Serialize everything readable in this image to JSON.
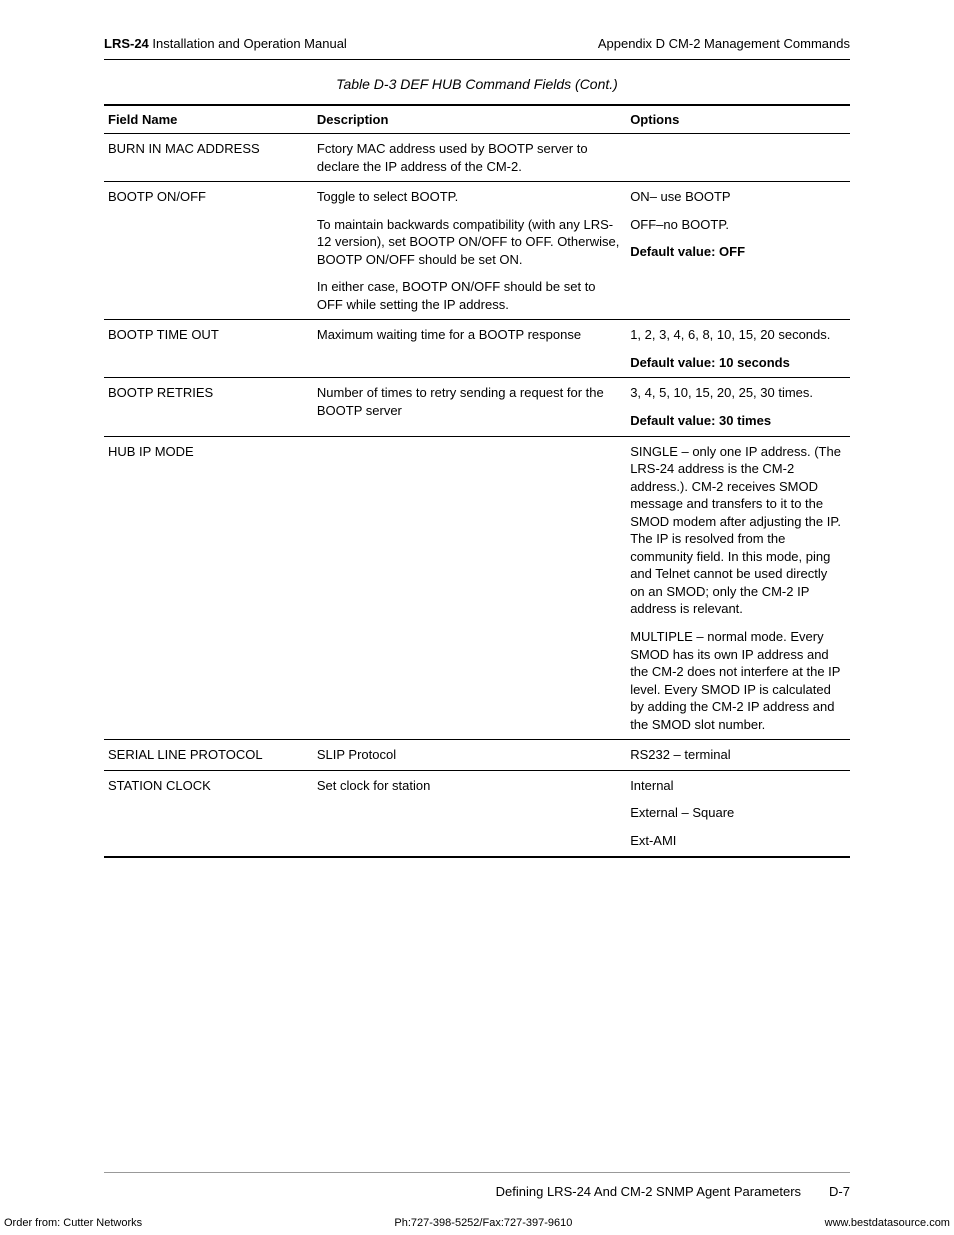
{
  "header": {
    "left_bold": "LRS-24",
    "left_rest": " Installation and Operation Manual",
    "right": "Appendix D  CM-2 Management Commands"
  },
  "caption": "Table D-3     DEF HUB Command Fields (Cont.)",
  "columns": {
    "field": "Field Name",
    "desc": "Description",
    "opt": "Options"
  },
  "rows": [
    {
      "field": "BURN IN MAC ADDRESS",
      "desc": [
        "Fctory MAC address used by BOOTP server to declare the IP address of the CM-2."
      ],
      "opt": []
    },
    {
      "field": "BOOTP ON/OFF",
      "desc": [
        "Toggle to select BOOTP.",
        "To maintain backwards compatibility (with any LRS-12 version), set BOOTP ON/OFF to OFF. Otherwise, BOOTP ON/OFF should be set ON.",
        "In either case, BOOTP ON/OFF should be set to OFF while setting the IP address."
      ],
      "opt": [
        "ON– use BOOTP",
        "OFF–no BOOTP.",
        "<b>Default value: OFF</b>"
      ]
    },
    {
      "field": "BOOTP TIME OUT",
      "desc": [
        "Maximum waiting  time for a BOOTP response"
      ],
      "opt": [
        "1, 2, 3, 4, 6, 8, 10, 15, 20 seconds.",
        "<b>Default value: 10 seconds</b>"
      ]
    },
    {
      "field": "BOOTP RETRIES",
      "desc": [
        "Number of times to retry sending a request for the BOOTP server"
      ],
      "opt": [
        "3, 4, 5, 10, 15, 20, 25, 30 times.",
        "<b>Default value: 30 times</b>"
      ]
    },
    {
      "field": "HUB IP MODE",
      "desc": [],
      "opt": [
        "SINGLE – only one IP address. (The LRS-24 address is the CM-2 address.). CM-2 receives SMOD message and transfers to it to the SMOD modem after adjusting the IP. The IP is resolved from the community field. In this mode, ping and Telnet cannot be used directly on an SMOD; only the CM-2 IP address is relevant.",
        "MULTIPLE – normal mode. Every SMOD has its own IP address and the CM-2 does not interfere at the IP level. Every SMOD IP is calculated by adding the CM-2 IP address and the SMOD slot number."
      ]
    },
    {
      "field": "SERIAL LINE PROTOCOL",
      "desc": [
        "SLIP Protocol"
      ],
      "opt": [
        "RS232 – terminal"
      ]
    },
    {
      "field": "STATION CLOCK",
      "desc": [
        "Set clock for station"
      ],
      "opt": [
        "Internal",
        "External  – Square",
        "Ext-AMI"
      ]
    }
  ],
  "footer": {
    "section": "Defining LRS-24 And CM-2 SNMP Agent Parameters",
    "pageno": "D-7",
    "order": "Order from: Cutter Networks",
    "phone": "Ph:727-398-5252/Fax:727-397-9610",
    "url": "www.bestdatasource.com"
  }
}
